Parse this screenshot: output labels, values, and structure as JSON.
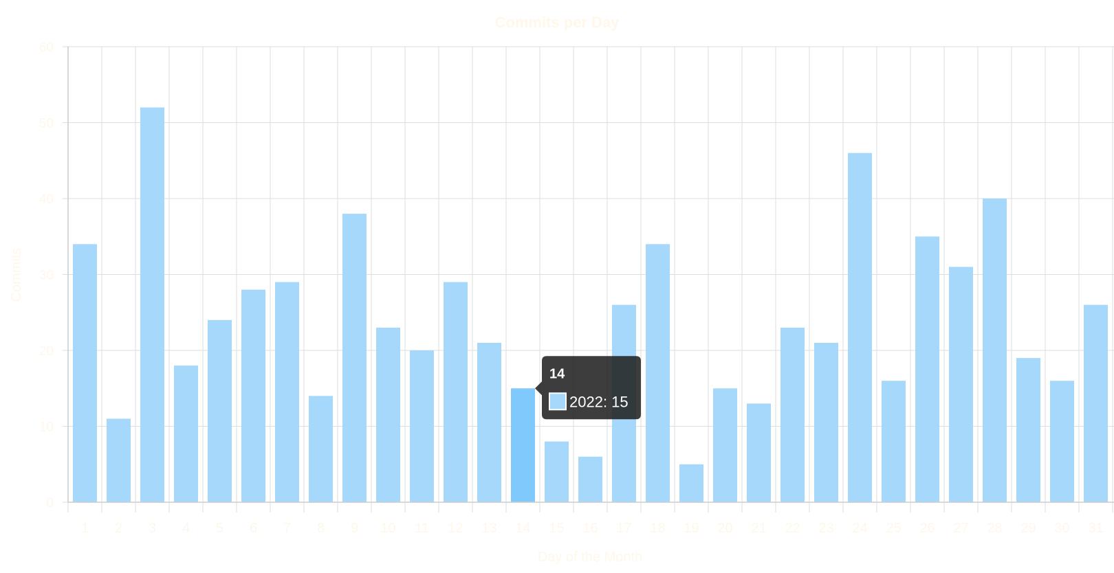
{
  "colors": {
    "bar": "#a6d8fc",
    "bar_active": "#80c9fd",
    "grid": "#dddddd",
    "axis": "#cccccc",
    "text_pale": "#fff7ea",
    "tooltip_bg": "#222222",
    "tooltip_text": "#ffffff"
  },
  "chart_data": {
    "type": "bar",
    "title": "Commits per Day",
    "xlabel": "Day of the Month",
    "ylabel": "Commits",
    "ylim": [
      0,
      60
    ],
    "yticks": [
      0,
      10,
      20,
      30,
      40,
      50,
      60
    ],
    "grid": true,
    "categories": [
      "1",
      "2",
      "3",
      "4",
      "5",
      "6",
      "7",
      "8",
      "9",
      "10",
      "11",
      "12",
      "13",
      "14",
      "15",
      "16",
      "17",
      "18",
      "19",
      "20",
      "21",
      "22",
      "23",
      "24",
      "25",
      "26",
      "27",
      "28",
      "29",
      "30",
      "31"
    ],
    "series": [
      {
        "name": "2022",
        "values": [
          34,
          11,
          52,
          18,
          24,
          28,
          29,
          14,
          38,
          23,
          20,
          29,
          21,
          15,
          8,
          6,
          26,
          34,
          5,
          15,
          13,
          23,
          21,
          46,
          16,
          35,
          31,
          40,
          19,
          16,
          26
        ]
      }
    ],
    "tooltip": {
      "title": "14",
      "label": "2022: 15",
      "index": 13
    }
  }
}
